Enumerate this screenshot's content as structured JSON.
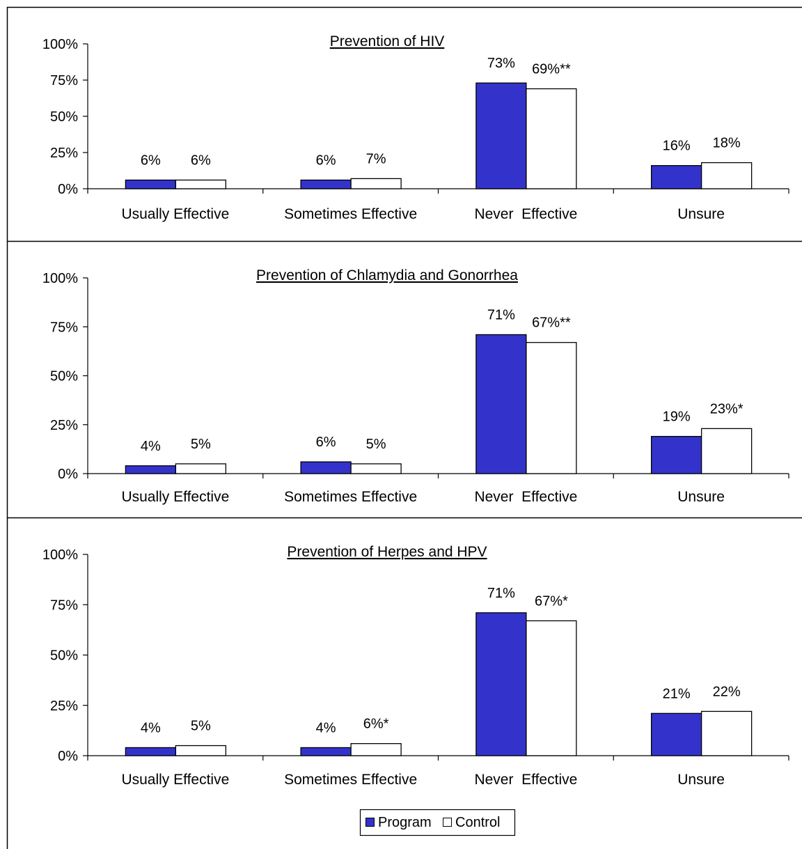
{
  "colors": {
    "program": "#3333cc",
    "control": "#ffffff",
    "outline": "#000000",
    "background": "#ffffff"
  },
  "legend": {
    "program_label": "Program",
    "control_label": "Control"
  },
  "chart_data": [
    {
      "type": "bar",
      "title": "Prevention of HIV",
      "xlabel": "",
      "ylabel": "",
      "ylim": [
        0,
        100
      ],
      "yticks": [
        "0%",
        "25%",
        "50%",
        "75%",
        "100%"
      ],
      "categories": [
        "Usually Effective",
        "Sometimes Effective",
        "Never  Effective",
        "Unsure"
      ],
      "series": [
        {
          "name": "Program",
          "values": [
            6,
            6,
            73,
            16
          ],
          "labels": [
            "6%",
            "6%",
            "73%",
            "16%"
          ]
        },
        {
          "name": "Control",
          "values": [
            6,
            7,
            69,
            18
          ],
          "labels": [
            "6%",
            "7%",
            "69%**",
            "18%"
          ]
        }
      ]
    },
    {
      "type": "bar",
      "title": "Prevention of Chlamydia and Gonorrhea",
      "xlabel": "",
      "ylabel": "",
      "ylim": [
        0,
        100
      ],
      "yticks": [
        "0%",
        "25%",
        "50%",
        "75%",
        "100%"
      ],
      "categories": [
        "Usually Effective",
        "Sometimes Effective",
        "Never  Effective",
        "Unsure"
      ],
      "series": [
        {
          "name": "Program",
          "values": [
            4,
            6,
            71,
            19
          ],
          "labels": [
            "4%",
            "6%",
            "71%",
            "19%"
          ]
        },
        {
          "name": "Control",
          "values": [
            5,
            5,
            67,
            23
          ],
          "labels": [
            "5%",
            "5%",
            "67%**",
            "23%*"
          ]
        }
      ]
    },
    {
      "type": "bar",
      "title": "Prevention of Herpes and HPV",
      "xlabel": "",
      "ylabel": "",
      "ylim": [
        0,
        100
      ],
      "yticks": [
        "0%",
        "25%",
        "50%",
        "75%",
        "100%"
      ],
      "categories": [
        "Usually Effective",
        "Sometimes Effective",
        "Never  Effective",
        "Unsure"
      ],
      "legend_position": "bottom-center",
      "series": [
        {
          "name": "Program",
          "values": [
            4,
            4,
            71,
            21
          ],
          "labels": [
            "4%",
            "4%",
            "71%",
            "21%"
          ]
        },
        {
          "name": "Control",
          "values": [
            5,
            6,
            67,
            22
          ],
          "labels": [
            "5%",
            "6%*",
            "67%*",
            "22%"
          ]
        }
      ]
    }
  ]
}
